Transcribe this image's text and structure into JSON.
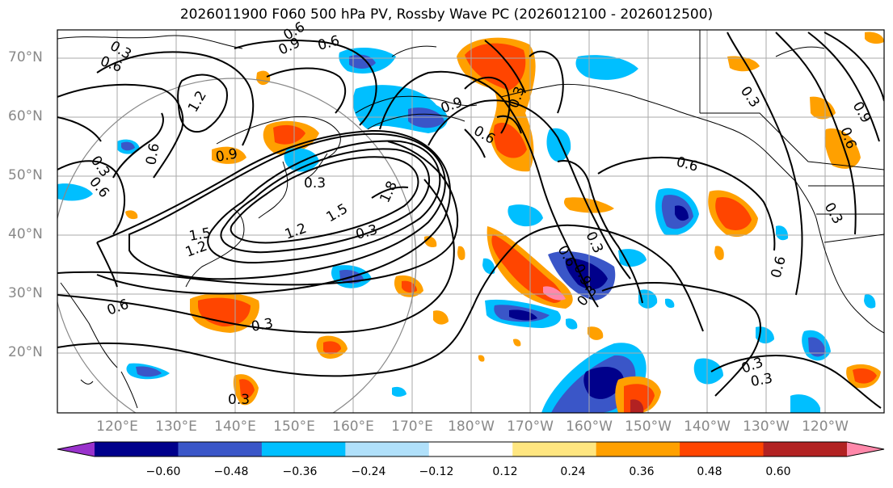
{
  "title": "2026011900 F060 500 hPa PV, Rossby Wave PC (2026012100 - 2026012500)",
  "latitude_labels": [
    "70°N",
    "60°N",
    "50°N",
    "40°N",
    "30°N",
    "20°N"
  ],
  "longitude_labels": [
    "120°E",
    "130°E",
    "140°E",
    "150°E",
    "160°E",
    "170°E",
    "180°W",
    "170°W",
    "160°W",
    "150°W",
    "140°W",
    "130°W",
    "120°W"
  ],
  "contour_labels": [
    "0.3",
    "0.6",
    "0.9",
    "0.6",
    "0.6",
    "1.2",
    "0.9",
    "0.3",
    "0.6",
    "0.3",
    "1.8",
    "1.5",
    "1.2",
    "0.3",
    "1.5",
    "1.2",
    "0.6",
    "0.3",
    "0.6",
    "0.9",
    "0.6",
    "0.3",
    "0.6",
    "0.9",
    "0.3",
    "0.3",
    "0.6",
    "0.3",
    "0.6",
    "0.9",
    "0.3",
    "0.3",
    "0.6",
    "0.3"
  ],
  "colorbar": {
    "tick_labels": [
      "−0.60",
      "−0.48",
      "−0.36",
      "−0.24",
      "−0.12",
      "0.12",
      "0.24",
      "0.36",
      "0.48",
      "0.60"
    ],
    "colors": [
      "#9932cc",
      "#00008b",
      "#3a56c8",
      "#00bfff",
      "#b0e0fa",
      "#ffffff",
      "#ffe680",
      "#ffa000",
      "#ff4500",
      "#b22222",
      "#ff88aa"
    ]
  },
  "colors": {
    "contour": "#000000",
    "coast": "#000000",
    "grid": "#aaaaaa",
    "axis_label": "#888888"
  }
}
